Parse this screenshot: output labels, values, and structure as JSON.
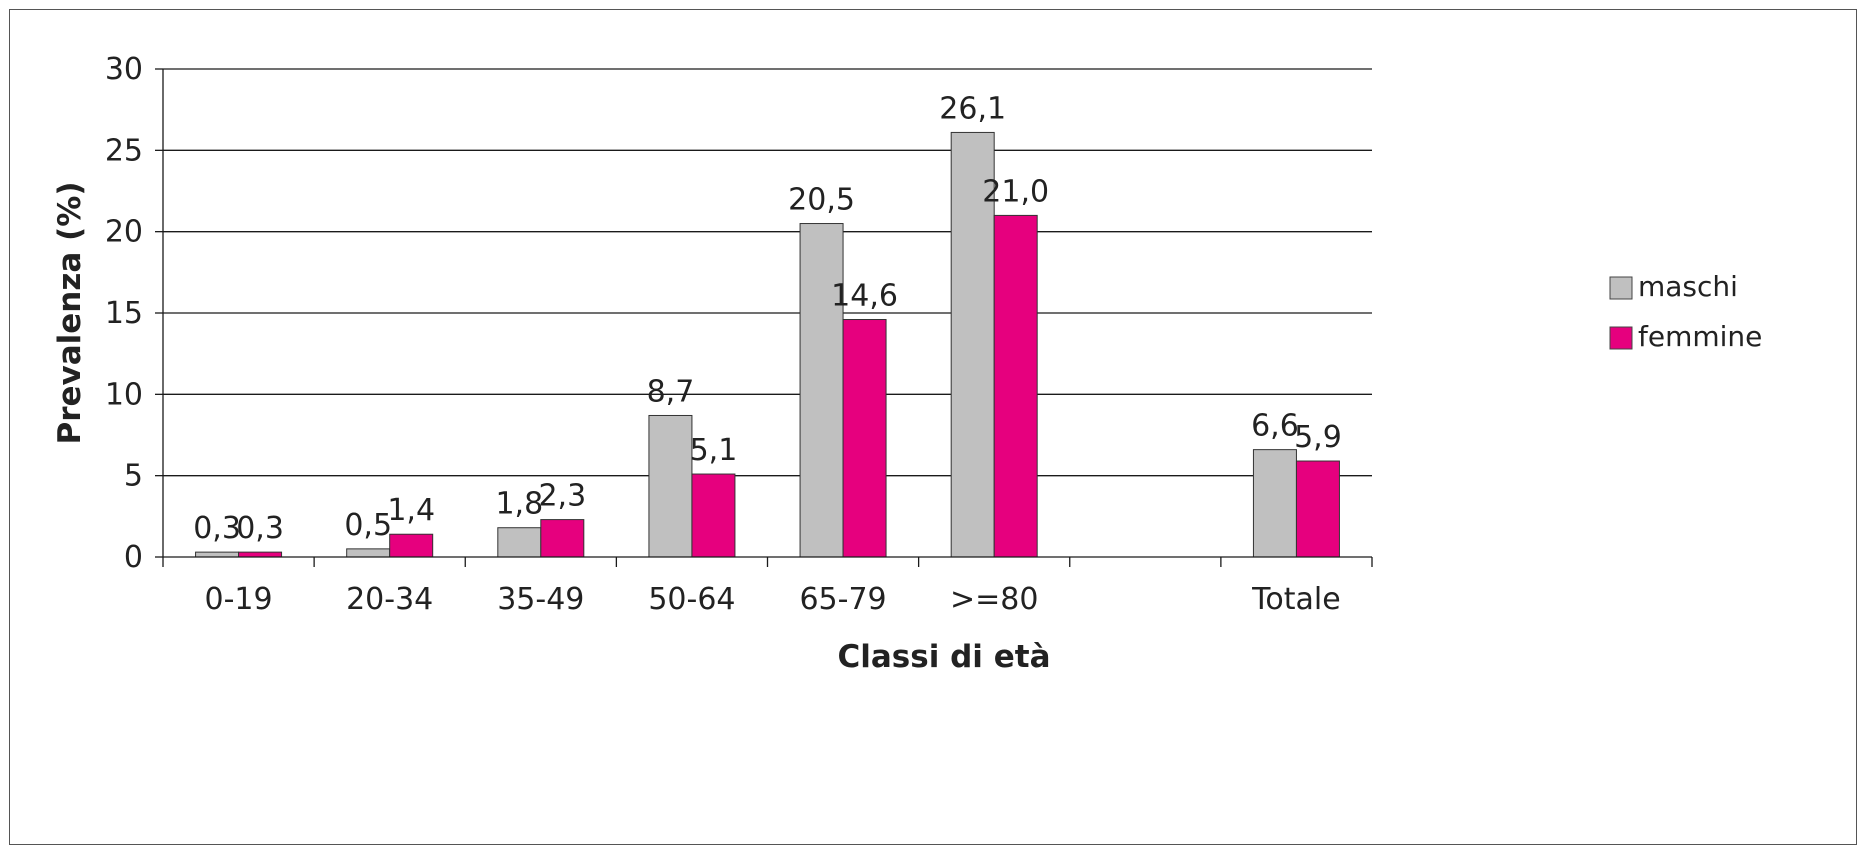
{
  "chart_data": {
    "type": "bar",
    "title": "",
    "xlabel": "Classi di età",
    "ylabel": "Prevalenza (%)",
    "ylim": [
      0,
      30
    ],
    "yticks": [
      0,
      5,
      10,
      15,
      20,
      25,
      30
    ],
    "ytick_labels": [
      "0",
      "5",
      "10",
      "15",
      "20",
      "25",
      "30"
    ],
    "grid": true,
    "legend_position": "right",
    "categories": [
      "0-19",
      "20-34",
      "35-49",
      "50-64",
      "65-79",
      ">=80",
      "",
      "Totale"
    ],
    "series": [
      {
        "name": "maschi",
        "color": "#c0c0c0",
        "values": [
          0.3,
          0.5,
          1.8,
          8.7,
          20.5,
          26.1,
          null,
          6.6
        ],
        "labels": [
          "0,3",
          "0,5",
          "1,8",
          "8,7",
          "20,5",
          "26,1",
          "",
          "6,6"
        ]
      },
      {
        "name": "femmine",
        "color": "#e6007e",
        "values": [
          0.3,
          1.4,
          2.3,
          5.1,
          14.6,
          21.0,
          null,
          5.9
        ],
        "labels": [
          "0,3",
          "1,4",
          "2,3",
          "5,1",
          "14,6",
          "21,0",
          "",
          "5,9"
        ]
      }
    ]
  }
}
